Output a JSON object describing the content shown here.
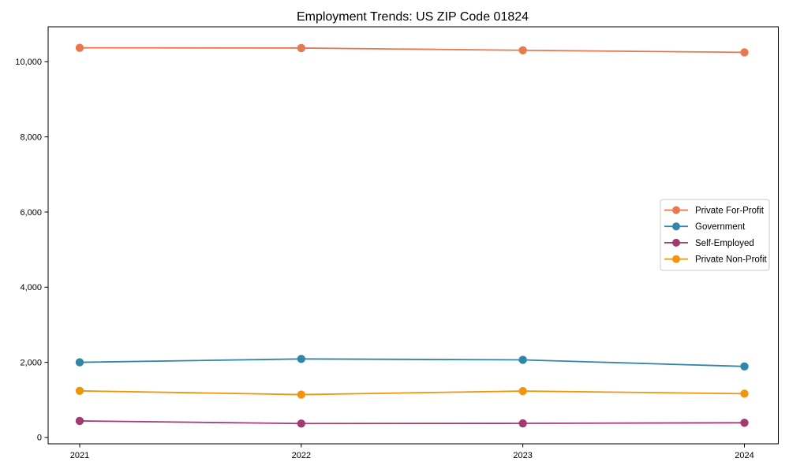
{
  "figure": {
    "background": "#ffffff",
    "spine_color": "#000000",
    "legend_border_color": "#c9c9c9"
  },
  "chart_data": {
    "type": "line",
    "title": "Employment Trends: US ZIP Code 01824",
    "xlabel": "",
    "ylabel": "",
    "categories": [
      "2021",
      "2022",
      "2023",
      "2024"
    ],
    "series": [
      {
        "name": "Private For-Profit",
        "color": "#e8784e",
        "values": [
          10370,
          10365,
          10305,
          10250
        ]
      },
      {
        "name": "Government",
        "color": "#2f86a8",
        "values": [
          2000,
          2090,
          2065,
          1890
        ]
      },
      {
        "name": "Self-Employed",
        "color": "#a23b72",
        "values": [
          440,
          370,
          375,
          390
        ]
      },
      {
        "name": "Private Non-Profit",
        "color": "#f2940d",
        "values": [
          1240,
          1140,
          1235,
          1165
        ]
      }
    ],
    "yticks": [
      0,
      2000,
      4000,
      6000,
      8000,
      10000
    ],
    "ytick_labels": [
      "0",
      "2,000",
      "4,000",
      "6,000",
      "8,000",
      "10,000"
    ],
    "ylim": [
      -170,
      10930
    ],
    "grid": false,
    "marker": "circle",
    "legend": {
      "position": "center-right",
      "entries": [
        "Private For-Profit",
        "Government",
        "Self-Employed",
        "Private Non-Profit"
      ]
    }
  }
}
